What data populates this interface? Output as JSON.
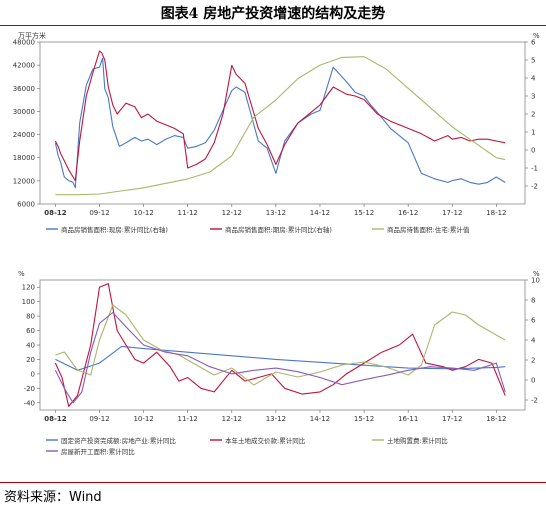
{
  "figure": {
    "title": "图表4   房地产投资增速的结构及走势",
    "source": "资料来源：Wind"
  },
  "chart_data": [
    {
      "type": "line",
      "x_ticks": [
        "08-12",
        "09-12",
        "10-12",
        "11-12",
        "12-12",
        "13-12",
        "14-12",
        "15-12",
        "16-12",
        "17-12",
        "18-12"
      ],
      "left_axis": {
        "unit": "万平方米",
        "ylim": [
          6000,
          48000
        ],
        "ticks": [
          6000,
          12000,
          18000,
          24000,
          30000,
          36000,
          42000,
          48000
        ]
      },
      "right_axis": {
        "unit": "%",
        "ylim": [
          -3,
          6
        ],
        "ticks": [
          -2,
          -1,
          0,
          1,
          2,
          3,
          4,
          5,
          6
        ]
      },
      "series": [
        {
          "name": "商品房销售面积:现房:累计同比(右轴)",
          "axis": "right",
          "color": "#4a78c8",
          "x": [
            0,
            0.06,
            0.12,
            0.2,
            0.3,
            0.4,
            0.45,
            0.55,
            0.7,
            0.85,
            1,
            1.07,
            1.12,
            1.2,
            1.3,
            1.45,
            1.6,
            1.8,
            1.95,
            2.1,
            2.3,
            2.5,
            2.7,
            2.9,
            3,
            3.2,
            3.4,
            3.6,
            3.8,
            4,
            4.1,
            4.3,
            4.6,
            4.8,
            5,
            5.2,
            5.5,
            5.8,
            6,
            6.3,
            6.6,
            6.8,
            7,
            7.15,
            7.3,
            7.6,
            8,
            8.3,
            8.6,
            8.9,
            9,
            9.2,
            9.4,
            9.6,
            9.8,
            10,
            10.2
          ],
          "y": [
            0.4,
            -0.3,
            -0.7,
            -1.5,
            -1.7,
            -1.8,
            -2.1,
            1.5,
            3.6,
            4.5,
            4.6,
            5.1,
            3.4,
            2.9,
            1.3,
            0.2,
            0.4,
            0.7,
            0.5,
            0.6,
            0.3,
            0.6,
            0.8,
            0.7,
            0.1,
            0.2,
            0.4,
            1.1,
            2.2,
            3.3,
            3.5,
            3.2,
            0.5,
            0.1,
            -1.3,
            0.5,
            1.5,
            2.0,
            2.2,
            4.6,
            3.8,
            3.2,
            3.0,
            2.5,
            2.1,
            1.2,
            0.4,
            -1.3,
            -1.6,
            -1.8,
            -1.7,
            -1.6,
            -1.8,
            -1.9,
            -1.8,
            -1.5,
            -1.8
          ]
        },
        {
          "name": "商品房销售面积:期房:累计同比(右轴)",
          "axis": "right",
          "color": "#c0143c",
          "x": [
            0,
            0.06,
            0.12,
            0.2,
            0.3,
            0.4,
            0.45,
            0.55,
            0.7,
            0.85,
            1,
            1.05,
            1.12,
            1.2,
            1.3,
            1.4,
            1.6,
            1.8,
            1.95,
            2.1,
            2.3,
            2.5,
            2.7,
            2.9,
            3,
            3.2,
            3.4,
            3.6,
            3.8,
            4,
            4.1,
            4.3,
            4.6,
            4.8,
            5,
            5.2,
            5.5,
            5.8,
            6,
            6.3,
            6.6,
            6.8,
            7,
            7.15,
            7.3,
            7.6,
            8,
            8.3,
            8.6,
            8.9,
            9,
            9.2,
            9.4,
            9.6,
            9.8,
            10,
            10.2
          ],
          "y": [
            0.5,
            0.2,
            -0.2,
            -0.6,
            -1.1,
            -1.5,
            -1.7,
            0.5,
            3.0,
            4.3,
            5.5,
            5.4,
            5.0,
            3.5,
            2.5,
            2.0,
            2.6,
            2.4,
            1.8,
            2.0,
            1.6,
            1.4,
            1.2,
            0.9,
            -1.0,
            -0.8,
            -0.5,
            0.4,
            2.0,
            4.7,
            4.2,
            3.7,
            1.2,
            0.3,
            -0.8,
            0.3,
            1.5,
            2.1,
            2.5,
            3.5,
            3.1,
            3.0,
            2.8,
            2.4,
            2.0,
            1.6,
            1.2,
            0.9,
            0.5,
            0.8,
            0.6,
            0.7,
            0.5,
            0.6,
            0.6,
            0.5,
            0.4
          ]
        },
        {
          "name": "商品房待售面积:住宅:累计值",
          "axis": "left",
          "color": "#a8b86a",
          "x": [
            0,
            0.5,
            1,
            2,
            3,
            3.5,
            4,
            4.5,
            5,
            5.5,
            6,
            6.5,
            7,
            7.5,
            8,
            8.5,
            9,
            9.5,
            10,
            10.2
          ],
          "y": [
            8400,
            8400,
            8600,
            10200,
            12500,
            14300,
            18500,
            28500,
            33000,
            38500,
            42000,
            44000,
            44200,
            41000,
            36000,
            31000,
            26000,
            22000,
            18000,
            17500
          ]
        }
      ]
    },
    {
      "type": "line",
      "x_ticks": [
        "08-12",
        "09-12",
        "10-12",
        "11-12",
        "12-12",
        "13-12",
        "14-12",
        "15-12",
        "16-11",
        "17-12",
        "18-12"
      ],
      "left_axis": {
        "unit": "%",
        "ylim": [
          -50,
          130
        ],
        "ticks": [
          -40,
          -20,
          0,
          20,
          40,
          60,
          80,
          100,
          120
        ]
      },
      "right_axis": {
        "unit": "%",
        "ylim": [
          -3,
          10
        ],
        "ticks": [
          -2,
          0,
          2,
          4,
          6,
          8,
          10
        ]
      },
      "series": [
        {
          "name": "固定资产投资完成额:房地产业:累计同比",
          "axis": "left",
          "color": "#4a78c8",
          "x": [
            0,
            0.5,
            1,
            1.5,
            2,
            3,
            4,
            5,
            6,
            7,
            8,
            9,
            10,
            10.2
          ],
          "y": [
            20,
            5,
            15,
            38,
            35,
            30,
            25,
            20,
            16,
            12,
            8,
            7,
            9,
            10
          ]
        },
        {
          "name": "本年土地成交价款:累计同比",
          "axis": "left",
          "color": "#c0143c",
          "x": [
            0,
            0.15,
            0.3,
            0.5,
            0.8,
            1,
            1.2,
            1.4,
            1.6,
            1.8,
            2,
            2.3,
            2.6,
            2.8,
            3,
            3.3,
            3.6,
            4,
            4.3,
            4.6,
            4.9,
            5.2,
            5.6,
            6,
            6.3,
            6.6,
            7,
            7.4,
            7.8,
            8.1,
            8.4,
            8.8,
            9,
            9.3,
            9.6,
            9.9,
            10.2
          ],
          "y": [
            15,
            -5,
            -45,
            -30,
            40,
            120,
            125,
            60,
            40,
            20,
            15,
            30,
            10,
            -10,
            -5,
            -20,
            -25,
            5,
            -10,
            -5,
            0,
            -20,
            -28,
            -25,
            -15,
            0,
            15,
            30,
            40,
            55,
            15,
            10,
            5,
            10,
            20,
            15,
            -30
          ]
        },
        {
          "name": "土地购置费:累计同比",
          "axis": "right",
          "color": "#a8b86a",
          "x": [
            0,
            0.2,
            0.5,
            0.8,
            1,
            1.3,
            1.6,
            2,
            2.4,
            2.8,
            3.2,
            3.6,
            4,
            4.5,
            5,
            5.5,
            6,
            6.5,
            7,
            7.5,
            8,
            8.3,
            8.6,
            9,
            9.3,
            9.6,
            10,
            10.2
          ],
          "y": [
            2.5,
            2.8,
            1.0,
            0.5,
            4.0,
            7.5,
            6.5,
            4.0,
            3.0,
            2.5,
            1.5,
            0.5,
            1.2,
            -0.5,
            0.8,
            0.3,
            0.8,
            1.5,
            1.8,
            1.3,
            0.5,
            1.5,
            5.5,
            6.8,
            6.5,
            5.5,
            4.5,
            4.0
          ]
        },
        {
          "name": "房屋新开工面积:累计同比",
          "axis": "left",
          "color": "#8a5ab8",
          "x": [
            0,
            0.2,
            0.4,
            0.6,
            0.8,
            1,
            1.3,
            1.6,
            2,
            2.5,
            3,
            3.5,
            4,
            4.5,
            5,
            5.5,
            6,
            6.5,
            7,
            7.5,
            8,
            8.5,
            9,
            9.5,
            10,
            10.2
          ],
          "y": [
            5,
            -20,
            -40,
            -25,
            30,
            70,
            85,
            65,
            40,
            30,
            25,
            10,
            0,
            5,
            8,
            3,
            -5,
            -15,
            -8,
            -2,
            5,
            10,
            8,
            5,
            15,
            -25
          ]
        }
      ]
    }
  ]
}
